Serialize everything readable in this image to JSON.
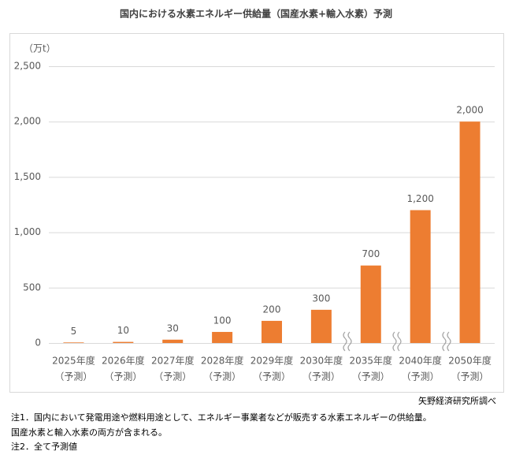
{
  "chart_data": {
    "type": "bar",
    "title": "国内における水素エネルギー供給量（国産水素+輸入水素）予測",
    "y_label": "（万t）",
    "categories": [
      [
        "2025年度",
        "（予測）"
      ],
      [
        "2026年度",
        "（予測）"
      ],
      [
        "2027年度",
        "（予測）"
      ],
      [
        "2028年度",
        "（予測）"
      ],
      [
        "2029年度",
        "（予測）"
      ],
      [
        "2030年度",
        "（予測）"
      ],
      [
        "2035年度",
        "（予測）"
      ],
      [
        "2040年度",
        "（予測）"
      ],
      [
        "2050年度",
        "（予測）"
      ]
    ],
    "values": [
      5,
      10,
      30,
      100,
      200,
      300,
      700,
      1200,
      2000
    ],
    "value_labels": [
      "5",
      "10",
      "30",
      "100",
      "200",
      "300",
      "700",
      "1,200",
      "2,000"
    ],
    "color": "#ed7d31",
    "ylim": [
      0,
      2500
    ],
    "yticks": [
      0,
      500,
      {
        "value": 1000,
        "label": "1,000"
      },
      {
        "value": 1500,
        "label": "1,500"
      },
      {
        "value": 2000,
        "label": "2,000"
      },
      {
        "value": 2500,
        "label": "2,500"
      }
    ],
    "grid": true,
    "source": "矢野経済研究所調べ",
    "notes": [
      "注1．国内において発電用途や燃料用途として、エネルギー事業者などが販売する水素エネルギーの供給量。",
      "国産水素と輸入水素の両方が含まれる。",
      "注2．全て予測値"
    ]
  }
}
